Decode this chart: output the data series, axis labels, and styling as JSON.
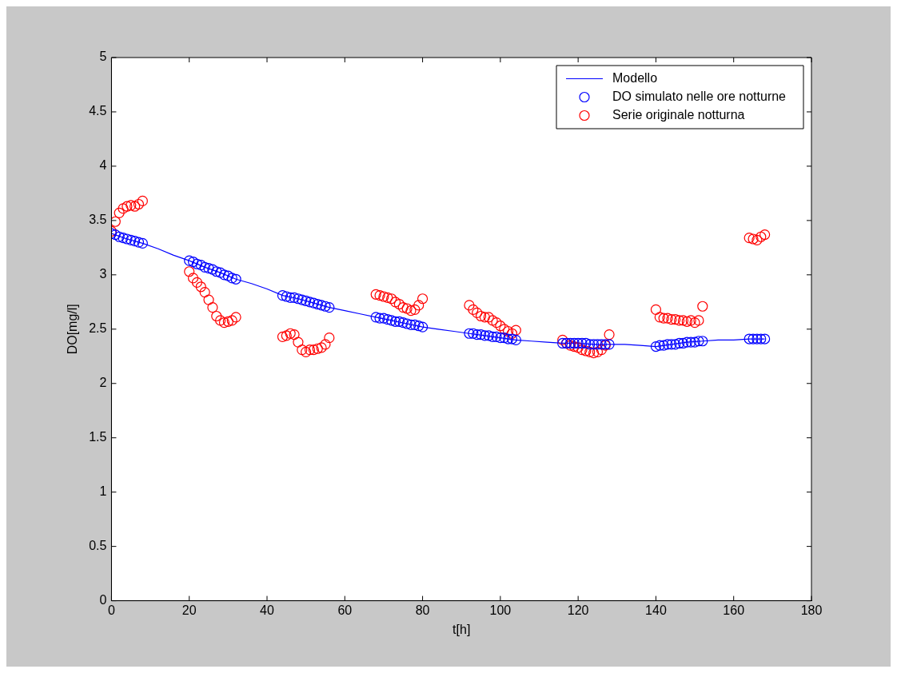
{
  "chart_data": {
    "type": "scatter",
    "xlabel": "t[h]",
    "ylabel": "DO[mg/l]",
    "xlim": [
      0,
      180
    ],
    "xticks": [
      0,
      20,
      40,
      60,
      80,
      100,
      120,
      140,
      160,
      180
    ],
    "ylim": [
      0,
      5
    ],
    "yticks": [
      0,
      0.5,
      1,
      1.5,
      2,
      2.5,
      3,
      3.5,
      4,
      4.5,
      5
    ],
    "grid": false,
    "legend": "top right",
    "series": [
      {
        "name": "Modello",
        "type": "line",
        "color": "#0000ff",
        "line_style": "solid",
        "x": [
          0,
          4,
          8,
          12,
          16,
          20,
          24,
          28,
          32,
          36,
          40,
          44,
          48,
          52,
          56,
          60,
          64,
          68,
          72,
          76,
          80,
          84,
          88,
          92,
          96,
          100,
          104,
          108,
          112,
          116,
          120,
          124,
          128,
          132,
          136,
          140,
          144,
          148,
          152,
          156,
          160,
          164,
          168
        ],
        "values": [
          3.38,
          3.33,
          3.29,
          3.24,
          3.18,
          3.13,
          3.07,
          3.02,
          2.96,
          2.92,
          2.87,
          2.81,
          2.78,
          2.74,
          2.7,
          2.67,
          2.64,
          2.61,
          2.58,
          2.55,
          2.52,
          2.5,
          2.48,
          2.46,
          2.44,
          2.42,
          2.4,
          2.39,
          2.38,
          2.37,
          2.37,
          2.36,
          2.36,
          2.36,
          2.35,
          2.34,
          2.36,
          2.38,
          2.39,
          2.4,
          2.4,
          2.41,
          2.41
        ]
      },
      {
        "name": "DO simulato nelle ore notturne",
        "type": "scatter",
        "marker": "circle",
        "color": "#0000ff",
        "x": [
          0,
          1,
          2,
          3,
          4,
          5,
          6,
          7,
          8,
          20,
          21,
          22,
          23,
          24,
          25,
          26,
          27,
          28,
          29,
          30,
          31,
          32,
          44,
          45,
          46,
          47,
          48,
          49,
          50,
          51,
          52,
          53,
          54,
          55,
          56,
          68,
          69,
          70,
          71,
          72,
          73,
          74,
          75,
          76,
          77,
          78,
          79,
          80,
          92,
          93,
          94,
          95,
          96,
          97,
          98,
          99,
          100,
          101,
          102,
          103,
          104,
          116,
          117,
          118,
          119,
          120,
          121,
          122,
          123,
          124,
          125,
          126,
          127,
          128,
          140,
          141,
          142,
          143,
          144,
          145,
          146,
          147,
          148,
          149,
          150,
          151,
          152,
          164,
          165,
          166,
          167,
          168
        ],
        "values": [
          3.38,
          3.37,
          3.35,
          3.34,
          3.33,
          3.32,
          3.31,
          3.3,
          3.29,
          3.13,
          3.12,
          3.1,
          3.09,
          3.07,
          3.06,
          3.05,
          3.03,
          3.02,
          3.0,
          2.99,
          2.97,
          2.96,
          2.81,
          2.8,
          2.79,
          2.79,
          2.78,
          2.77,
          2.76,
          2.75,
          2.74,
          2.73,
          2.72,
          2.71,
          2.7,
          2.61,
          2.6,
          2.6,
          2.59,
          2.58,
          2.57,
          2.57,
          2.56,
          2.55,
          2.54,
          2.54,
          2.53,
          2.52,
          2.46,
          2.46,
          2.45,
          2.45,
          2.44,
          2.44,
          2.43,
          2.43,
          2.42,
          2.42,
          2.41,
          2.41,
          2.4,
          2.37,
          2.37,
          2.37,
          2.37,
          2.37,
          2.37,
          2.37,
          2.36,
          2.36,
          2.36,
          2.36,
          2.36,
          2.36,
          2.34,
          2.35,
          2.35,
          2.36,
          2.36,
          2.36,
          2.37,
          2.37,
          2.38,
          2.38,
          2.38,
          2.39,
          2.39,
          2.41,
          2.41,
          2.41,
          2.41,
          2.41
        ]
      },
      {
        "name": "Serie originale notturna",
        "type": "scatter",
        "marker": "circle",
        "color": "#ff0000",
        "x": [
          0,
          1,
          2,
          3,
          4,
          5,
          6,
          7,
          8,
          20,
          21,
          22,
          23,
          24,
          25,
          26,
          27,
          28,
          29,
          30,
          31,
          32,
          44,
          45,
          46,
          47,
          48,
          49,
          50,
          51,
          52,
          53,
          54,
          55,
          56,
          68,
          69,
          70,
          71,
          72,
          73,
          74,
          75,
          76,
          77,
          78,
          79,
          80,
          92,
          93,
          94,
          95,
          96,
          97,
          98,
          99,
          100,
          101,
          102,
          103,
          104,
          116,
          117,
          118,
          119,
          120,
          121,
          122,
          123,
          124,
          125,
          126,
          127,
          128,
          140,
          141,
          142,
          143,
          144,
          145,
          146,
          147,
          148,
          149,
          150,
          151,
          152,
          164,
          165,
          166,
          167,
          168
        ],
        "values": [
          3.4,
          3.49,
          3.57,
          3.61,
          3.63,
          3.64,
          3.63,
          3.65,
          3.68,
          3.03,
          2.97,
          2.93,
          2.89,
          2.84,
          2.77,
          2.7,
          2.62,
          2.58,
          2.56,
          2.57,
          2.58,
          2.61,
          2.43,
          2.44,
          2.46,
          2.45,
          2.38,
          2.31,
          2.29,
          2.31,
          2.31,
          2.32,
          2.33,
          2.36,
          2.42,
          2.82,
          2.81,
          2.8,
          2.79,
          2.78,
          2.75,
          2.73,
          2.7,
          2.69,
          2.67,
          2.68,
          2.72,
          2.78,
          2.72,
          2.68,
          2.65,
          2.62,
          2.61,
          2.61,
          2.58,
          2.56,
          2.53,
          2.5,
          2.48,
          2.46,
          2.49,
          2.4,
          2.37,
          2.35,
          2.34,
          2.33,
          2.31,
          2.3,
          2.29,
          2.28,
          2.29,
          2.31,
          2.35,
          2.45,
          2.68,
          2.61,
          2.6,
          2.6,
          2.59,
          2.59,
          2.58,
          2.58,
          2.57,
          2.58,
          2.56,
          2.58,
          2.71,
          3.34,
          3.33,
          3.32,
          3.35,
          3.37
        ]
      }
    ]
  }
}
